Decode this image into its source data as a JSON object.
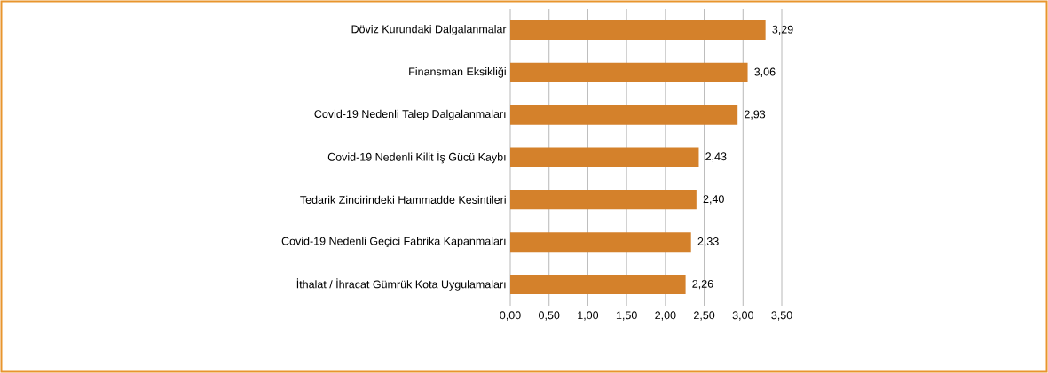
{
  "chart_data": {
    "type": "bar",
    "orientation": "horizontal",
    "categories": [
      "Döviz Kurundaki Dalgalanmalar",
      "Finansman Eksikliği",
      "Covid-19 Nedenli Talep Dalgalanmaları",
      "Covid-19 Nedenli Kilit İş Gücü Kaybı",
      "Tedarik Zincirindeki Hammadde Kesintileri",
      "Covid-19 Nedenli Geçici Fabrika Kapanmaları",
      "İthalat / İhracat Gümrük Kota Uygulamaları"
    ],
    "values": [
      3.29,
      3.06,
      2.93,
      2.43,
      2.4,
      2.33,
      2.26
    ],
    "value_labels": [
      "3,29",
      "3,06",
      "2,93",
      "2,43",
      "2,40",
      "2,33",
      "2,26"
    ],
    "color": "#d4812b",
    "xlim": [
      0,
      3.5
    ],
    "xticks": [
      {
        "value": 0,
        "label": "0,00"
      },
      {
        "value": 0.5,
        "label": "0,50"
      },
      {
        "value": 1,
        "label": "1,00"
      },
      {
        "value": 1.5,
        "label": "1,50"
      },
      {
        "value": 2,
        "label": "2,00"
      },
      {
        "value": 2.5,
        "label": "2,50"
      },
      {
        "value": 3,
        "label": "3,00"
      },
      {
        "value": 3.5,
        "label": "3,50"
      }
    ],
    "grid": "x"
  }
}
